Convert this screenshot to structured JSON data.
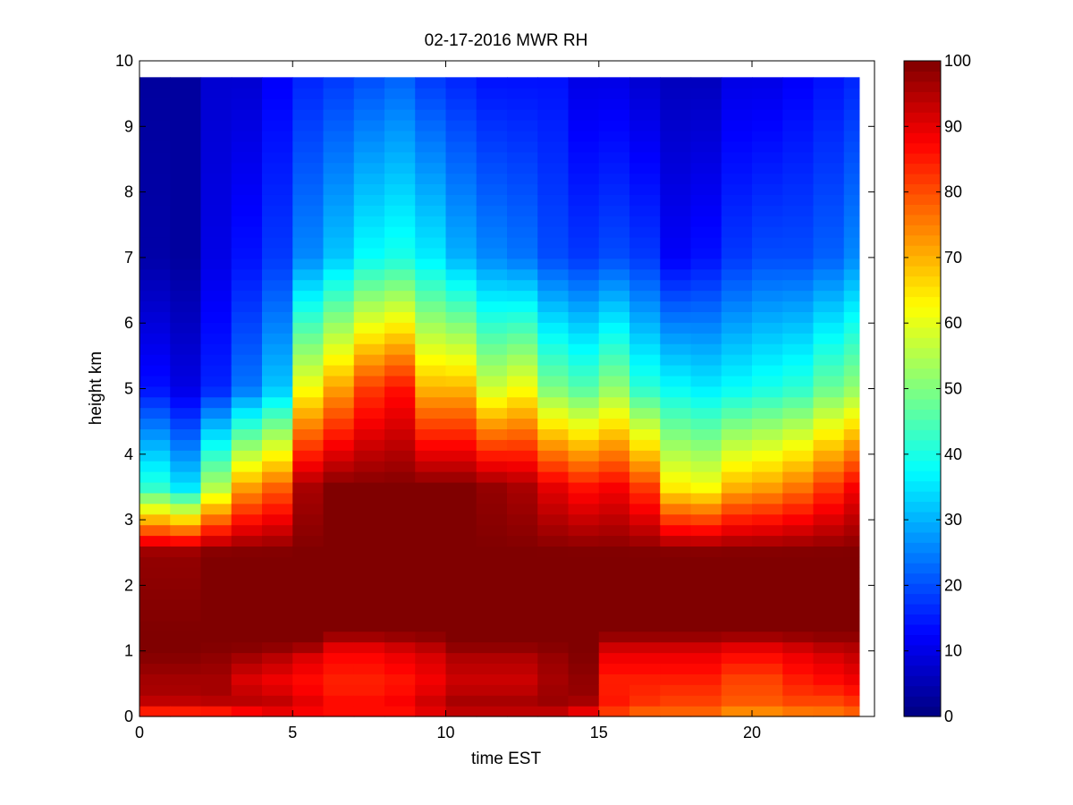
{
  "chart_data": {
    "type": "heatmap",
    "title": "02-17-2016 MWR RH",
    "xlabel": "time EST",
    "ylabel": "height km",
    "xlim": [
      0,
      24
    ],
    "ylim": [
      0,
      10
    ],
    "x_ticks": [
      "0",
      "5",
      "10",
      "15",
      "20"
    ],
    "y_ticks": [
      "0",
      "1",
      "2",
      "3",
      "4",
      "5",
      "6",
      "7",
      "8",
      "9",
      "10"
    ],
    "colorbar": {
      "colormap": "jet",
      "range": [
        0,
        100
      ],
      "ticks": [
        "0",
        "10",
        "20",
        "30",
        "40",
        "50",
        "60",
        "70",
        "80",
        "90",
        "100"
      ]
    },
    "time_hours": [
      0,
      1,
      2,
      3,
      4,
      5,
      6,
      7,
      8,
      9,
      10,
      11,
      12,
      13,
      14,
      15,
      16,
      17,
      18,
      19,
      20,
      21,
      22,
      23
    ],
    "height_profile_points_km": [
      0,
      0.1,
      0.3,
      0.5,
      1.0,
      1.1,
      1.3,
      2.5,
      3.5,
      5.0,
      7.0,
      9.75
    ],
    "data_extent": {
      "time_hours": [
        0,
        23.5
      ],
      "height_km": [
        0,
        9.75
      ]
    },
    "rh_profiles_percent": [
      [
        72,
        88,
        96,
        96,
        100,
        100,
        100,
        98,
        42,
        14,
        4,
        3
      ],
      [
        72,
        88,
        96,
        96,
        100,
        100,
        100,
        98,
        35,
        10,
        3,
        3
      ],
      [
        75,
        88,
        97,
        96,
        99,
        100,
        100,
        100,
        55,
        16,
        10,
        8
      ],
      [
        78,
        90,
        96,
        90,
        98,
        100,
        100,
        100,
        72,
        24,
        14,
        8
      ],
      [
        80,
        92,
        94,
        88,
        96,
        100,
        100,
        100,
        78,
        32,
        18,
        12
      ],
      [
        80,
        90,
        90,
        86,
        92,
        100,
        100,
        100,
        96,
        62,
        26,
        16
      ],
      [
        80,
        88,
        86,
        84,
        88,
        92,
        100,
        100,
        100,
        72,
        32,
        18
      ],
      [
        80,
        88,
        86,
        84,
        88,
        92,
        100,
        100,
        100,
        82,
        38,
        20
      ],
      [
        80,
        88,
        88,
        85,
        90,
        94,
        100,
        100,
        100,
        86,
        40,
        22
      ],
      [
        82,
        92,
        92,
        88,
        92,
        96,
        100,
        100,
        100,
        70,
        36,
        18
      ],
      [
        84,
        96,
        96,
        92,
        96,
        100,
        100,
        100,
        100,
        70,
        30,
        16
      ],
      [
        84,
        96,
        96,
        92,
        96,
        100,
        100,
        100,
        98,
        58,
        26,
        14
      ],
      [
        84,
        96,
        96,
        92,
        96,
        100,
        100,
        100,
        96,
        62,
        24,
        14
      ],
      [
        84,
        96,
        98,
        96,
        98,
        100,
        100,
        100,
        90,
        50,
        20,
        14
      ],
      [
        80,
        92,
        98,
        98,
        100,
        100,
        100,
        100,
        86,
        46,
        18,
        10
      ],
      [
        74,
        84,
        86,
        84,
        90,
        94,
        100,
        100,
        88,
        52,
        20,
        10
      ],
      [
        72,
        80,
        84,
        84,
        90,
        94,
        100,
        100,
        82,
        42,
        18,
        8
      ],
      [
        70,
        80,
        82,
        84,
        90,
        94,
        100,
        100,
        64,
        38,
        12,
        6
      ],
      [
        70,
        80,
        82,
        84,
        90,
        94,
        100,
        100,
        62,
        36,
        14,
        6
      ],
      [
        66,
        76,
        80,
        80,
        88,
        92,
        100,
        100,
        70,
        38,
        18,
        10
      ],
      [
        66,
        76,
        80,
        80,
        88,
        92,
        100,
        100,
        72,
        40,
        20,
        10
      ],
      [
        68,
        78,
        82,
        84,
        90,
        94,
        100,
        100,
        76,
        42,
        20,
        12
      ],
      [
        70,
        78,
        82,
        86,
        92,
        96,
        100,
        100,
        82,
        48,
        22,
        14
      ],
      [
        72,
        80,
        84,
        88,
        94,
        96,
        100,
        100,
        88,
        52,
        26,
        16
      ]
    ]
  }
}
